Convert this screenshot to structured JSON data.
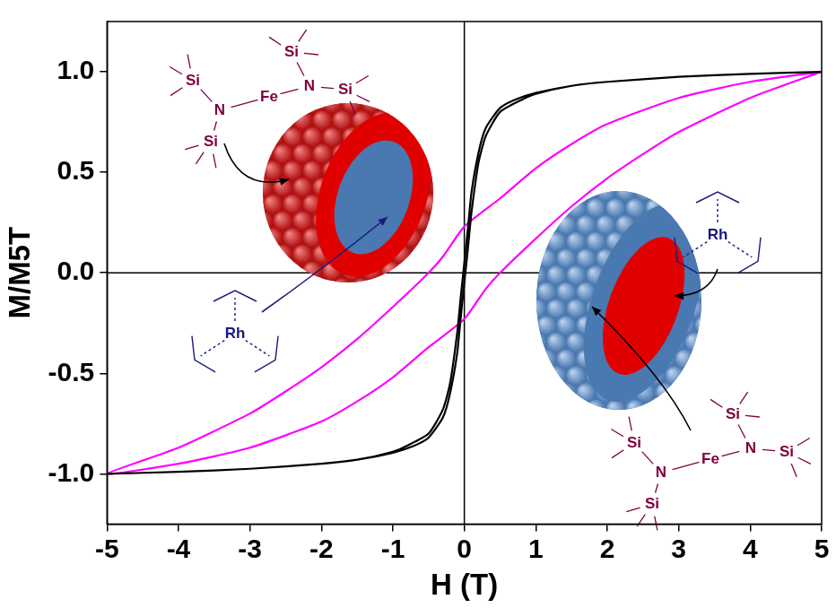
{
  "chart_data": {
    "type": "line",
    "x_label": "H (T)",
    "y_label": "M/M5T",
    "xlim": [
      -5,
      5
    ],
    "xticks": [
      -5,
      -4,
      -3,
      -2,
      -1,
      0,
      1,
      2,
      3,
      4,
      5
    ],
    "ylim": [
      -1.25,
      1.25
    ],
    "yticks": [
      {
        "value": -1,
        "label": "-1.0"
      },
      {
        "value": -0.5,
        "label": "-0.5"
      },
      {
        "value": 0,
        "label": "0.0"
      },
      {
        "value": 0.5,
        "label": "0.5"
      },
      {
        "value": 1,
        "label": "1.0"
      }
    ],
    "grid": false,
    "series": [
      {
        "color": "#000000",
        "marker": "none",
        "line_style": "solid",
        "x": [
          5,
          4,
          3,
          2,
          1.5,
          1,
          0.7,
          0.5,
          0.3,
          0.2,
          0.1,
          0.05,
          0,
          -0.05,
          -0.1,
          -0.2,
          -0.3,
          -0.5,
          -0.8,
          -1,
          -1.5,
          -2,
          -3,
          -4,
          -5,
          -4,
          -3,
          -2,
          -1.5,
          -1,
          -0.7,
          -0.5,
          -0.3,
          -0.2,
          -0.1,
          -0.05,
          0,
          0.05,
          0.1,
          0.2,
          0.3,
          0.5,
          0.8,
          1,
          1.5,
          2,
          3,
          4,
          5
        ],
        "values": [
          1,
          0.99,
          0.975,
          0.95,
          0.93,
          0.895,
          0.86,
          0.82,
          0.72,
          0.6,
          0.4,
          0.22,
          0.05,
          -0.12,
          -0.3,
          -0.55,
          -0.68,
          -0.8,
          -0.86,
          -0.89,
          -0.93,
          -0.95,
          -0.975,
          -0.99,
          -1,
          -0.99,
          -0.975,
          -0.95,
          -0.93,
          -0.895,
          -0.86,
          -0.82,
          -0.72,
          -0.6,
          -0.4,
          -0.22,
          -0.05,
          0.12,
          0.3,
          0.55,
          0.68,
          0.8,
          0.86,
          0.89,
          0.93,
          0.95,
          0.975,
          0.99,
          1
        ]
      },
      {
        "color": "#ff00ff",
        "marker": "none",
        "line_style": "solid",
        "x": [
          5,
          4,
          3,
          2,
          1.5,
          1,
          0.5,
          0,
          -0.3,
          -0.5,
          -1,
          -1.5,
          -2,
          -2.5,
          -3,
          -4,
          -5,
          -4,
          -3,
          -2,
          -1.5,
          -1,
          -0.5,
          0,
          0.3,
          0.5,
          1,
          1.5,
          2,
          2.5,
          3,
          4,
          5
        ],
        "values": [
          1,
          0.95,
          0.87,
          0.74,
          0.64,
          0.52,
          0.37,
          0.23,
          0.08,
          0,
          -0.17,
          -0.33,
          -0.47,
          -0.59,
          -0.7,
          -0.87,
          -1,
          -0.95,
          -0.87,
          -0.74,
          -0.64,
          -0.52,
          -0.37,
          -0.23,
          -0.08,
          0,
          0.17,
          0.33,
          0.47,
          0.59,
          0.7,
          0.87,
          1
        ]
      }
    ],
    "annotations": [
      {
        "labels": [
          "Si",
          "N",
          "Si",
          "Fe",
          "N",
          "Si",
          "Si"
        ],
        "color": "#800040"
      },
      {
        "labels": [
          "Rh"
        ],
        "color": "#1a1a80"
      },
      {
        "labels": [
          "Rh"
        ],
        "color": "#1a1a80"
      },
      {
        "labels": [
          "Si",
          "N",
          "Si",
          "Fe",
          "N",
          "Si",
          "Si"
        ],
        "color": "#800040"
      }
    ]
  }
}
